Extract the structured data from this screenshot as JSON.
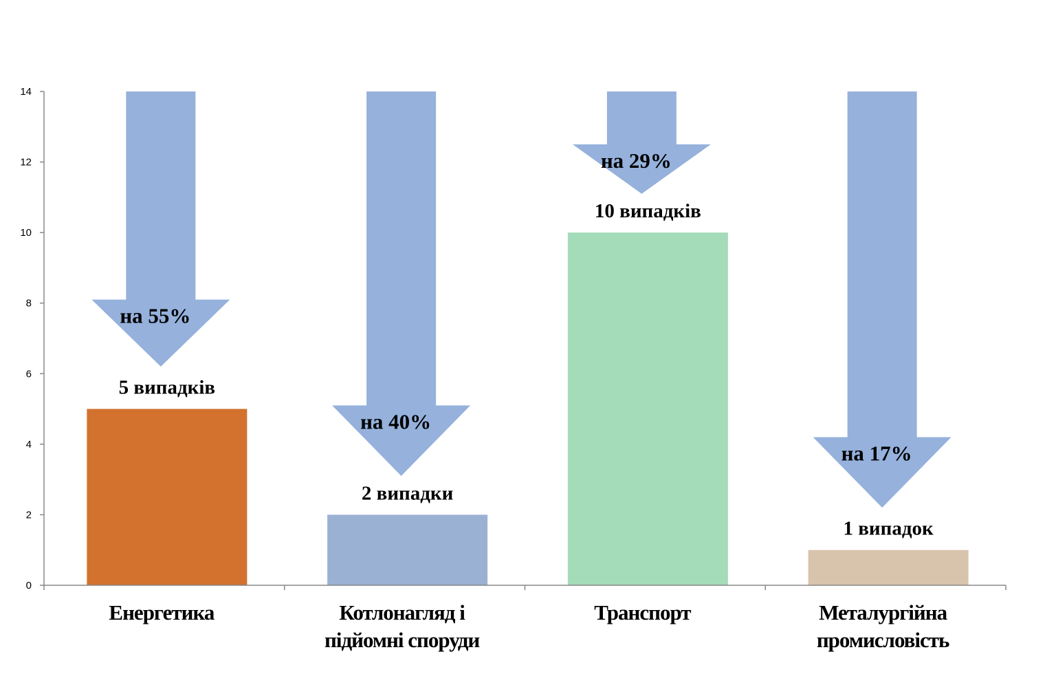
{
  "chart_data": {
    "type": "bar",
    "categories": [
      [
        "Енергетика"
      ],
      [
        "Котлонагляд і",
        "підйомні споруди"
      ],
      [
        "Транспорт"
      ],
      [
        "Металургійна",
        "промисловість"
      ]
    ],
    "values": [
      5,
      2,
      10,
      1
    ],
    "data_labels": [
      "5 випадків",
      "2 випадки",
      "10 випадків",
      "1 випадок"
    ],
    "arrow_labels": [
      "на 55%",
      "на 40%",
      "на 29%",
      "на 17%"
    ],
    "arrow_tip_values": [
      6.2,
      3.1,
      11.1,
      2.2
    ],
    "arrow_head_top_values": [
      8.1,
      5.1,
      12.5,
      4.2
    ],
    "ylim": [
      0,
      14
    ],
    "yticks": [
      0,
      2,
      4,
      6,
      8,
      10,
      12,
      14
    ],
    "title": "",
    "xlabel": "",
    "ylabel": "",
    "bar_colors": [
      "#D2722E",
      "#9BB1D4",
      "#A4DBB8",
      "#D8C3AD"
    ],
    "arrow_color": "#95B1DC",
    "axis_color": "#888888"
  }
}
